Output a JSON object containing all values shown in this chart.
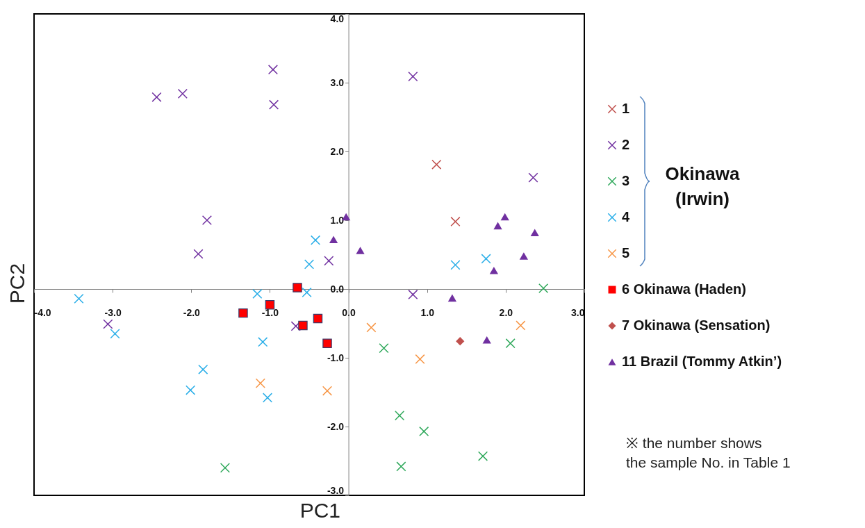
{
  "chart_data": {
    "type": "scatter",
    "xlabel": "PC1",
    "ylabel": "PC2",
    "xlim": [
      -4,
      3
    ],
    "ylim": [
      -3,
      4
    ],
    "xticks": [
      {
        "value": -4,
        "label": "-4.0"
      },
      {
        "value": -3,
        "label": "-3.0"
      },
      {
        "value": -2,
        "label": "-2.0"
      },
      {
        "value": -1,
        "label": "-1.0"
      },
      {
        "value": 0,
        "label": "0.0"
      },
      {
        "value": 1,
        "label": "1.0"
      },
      {
        "value": 2,
        "label": "2.0"
      },
      {
        "value": 3,
        "label": "3.0"
      }
    ],
    "yticks": [
      {
        "value": -3,
        "label": "-3.0"
      },
      {
        "value": -2,
        "label": "-2.0"
      },
      {
        "value": -1,
        "label": "-1.0"
      },
      {
        "value": 0,
        "label": "0.0"
      },
      {
        "value": 1,
        "label": "1.0"
      },
      {
        "value": 2,
        "label": "2.0"
      },
      {
        "value": 3,
        "label": "3.0"
      },
      {
        "value": 4,
        "label": "4.0"
      }
    ],
    "grid": false,
    "legend": "right",
    "annotations": [
      "Okinawa\n(Irwin)",
      "※  the number shows\nthe sample No. in Table 1"
    ],
    "series": [
      {
        "name": "1",
        "color": "#c0504d",
        "marker": "cross",
        "x": [
          1.12,
          1.36
        ],
        "values": [
          1.81,
          0.98
        ]
      },
      {
        "name": "2",
        "color": "#7030a0",
        "marker": "cross",
        "x": [
          -2.44,
          -2.11,
          -0.96,
          -0.95,
          -1.8,
          -1.91,
          -0.25,
          0.82,
          2.35,
          0.82,
          -3.06,
          -0.67
        ],
        "values": [
          2.79,
          2.84,
          3.19,
          2.68,
          1.0,
          0.51,
          0.41,
          3.09,
          1.62,
          -0.08,
          -0.51,
          -0.54
        ]
      },
      {
        "name": "3",
        "color": "#2ea85a",
        "marker": "cross",
        "x": [
          2.48,
          0.45,
          2.06,
          0.65,
          0.96,
          0.67,
          1.71,
          -1.57
        ],
        "values": [
          0.01,
          -0.86,
          -0.79,
          -1.84,
          -2.07,
          -2.58,
          -2.43,
          -2.6
        ]
      },
      {
        "name": "4",
        "color": "#29aee8",
        "marker": "cross",
        "x": [
          -0.42,
          -0.5,
          1.36,
          1.75,
          -3.43,
          -2.97,
          -1.16,
          -0.53,
          -1.09,
          -1.85,
          -2.01,
          -1.03
        ],
        "values": [
          0.71,
          0.36,
          0.35,
          0.44,
          -0.14,
          -0.65,
          -0.07,
          -0.05,
          -0.77,
          -1.17,
          -1.47,
          -1.58
        ]
      },
      {
        "name": "5",
        "color": "#f79646",
        "marker": "cross",
        "x": [
          -1.12,
          -0.27,
          0.29,
          0.91,
          2.19
        ],
        "values": [
          -1.37,
          -1.48,
          -0.56,
          -1.02,
          -0.53
        ]
      },
      {
        "name": "6  Okinawa (Haden)",
        "color": "#ff0000",
        "marker": "square",
        "x": [
          -0.65,
          -1.0,
          -1.34,
          -0.39,
          -0.58,
          -0.27
        ],
        "values": [
          0.02,
          -0.23,
          -0.35,
          -0.43,
          -0.53,
          -0.79
        ]
      },
      {
        "name": "7  Okinawa (Sensation)",
        "color": "#c0504d",
        "marker": "diamond",
        "x": [
          1.42
        ],
        "values": [
          -0.76
        ]
      },
      {
        "name": "11 Brazil (Tommy Atkin’)",
        "color": "#7030a0",
        "marker": "triangle",
        "x": [
          -0.03,
          -0.19,
          0.15,
          1.99,
          1.9,
          2.37,
          2.23,
          1.85,
          1.32,
          1.76
        ],
        "values": [
          1.05,
          0.72,
          0.56,
          1.05,
          0.92,
          0.82,
          0.48,
          0.27,
          -0.13,
          -0.74
        ]
      }
    ]
  }
}
